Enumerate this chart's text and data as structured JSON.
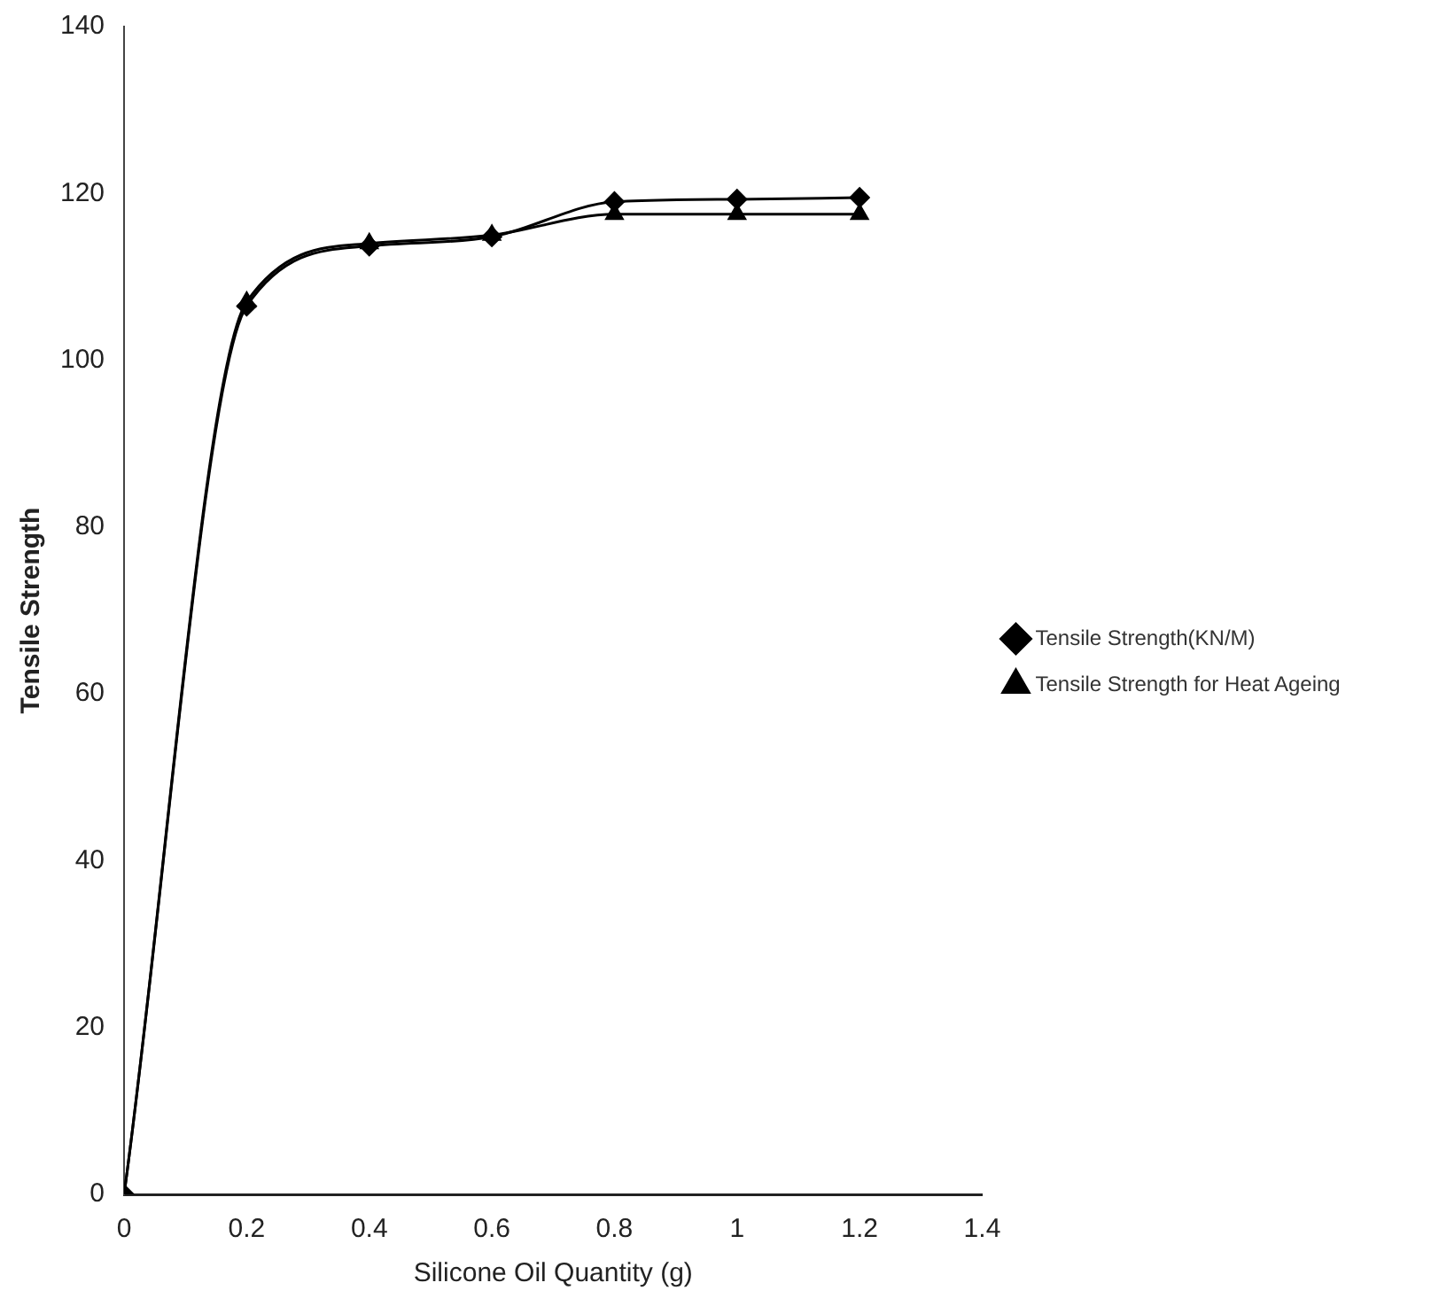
{
  "chart_data": {
    "type": "line",
    "xlabel": "Silicone Oil Quantity (g)",
    "ylabel": "Tensile Strength",
    "x": [
      0,
      0.2,
      0.4,
      0.6,
      0.8,
      1,
      1.2
    ],
    "series": [
      {
        "name": "Tensile Strength(KN/M)",
        "color": "#000000",
        "marker": "diamond",
        "values": [
          0,
          106.5,
          113.7,
          114.8,
          119,
          119.3,
          119.5
        ]
      },
      {
        "name": "Tensile Strength for Heat Ageing",
        "color": "#000000",
        "marker": "triangle",
        "values": [
          0,
          107,
          114,
          115,
          117.5,
          117.5,
          117.5
        ]
      }
    ],
    "xlim": [
      0,
      1.4
    ],
    "xticks": [
      0,
      0.2,
      0.4,
      0.6,
      0.8,
      1,
      1.2,
      1.4
    ],
    "ylim": [
      0,
      140
    ],
    "yticks": [
      0,
      20,
      40,
      60,
      80,
      100,
      120,
      140
    ],
    "grid": false,
    "legend": "right",
    "line_style": "solid"
  }
}
